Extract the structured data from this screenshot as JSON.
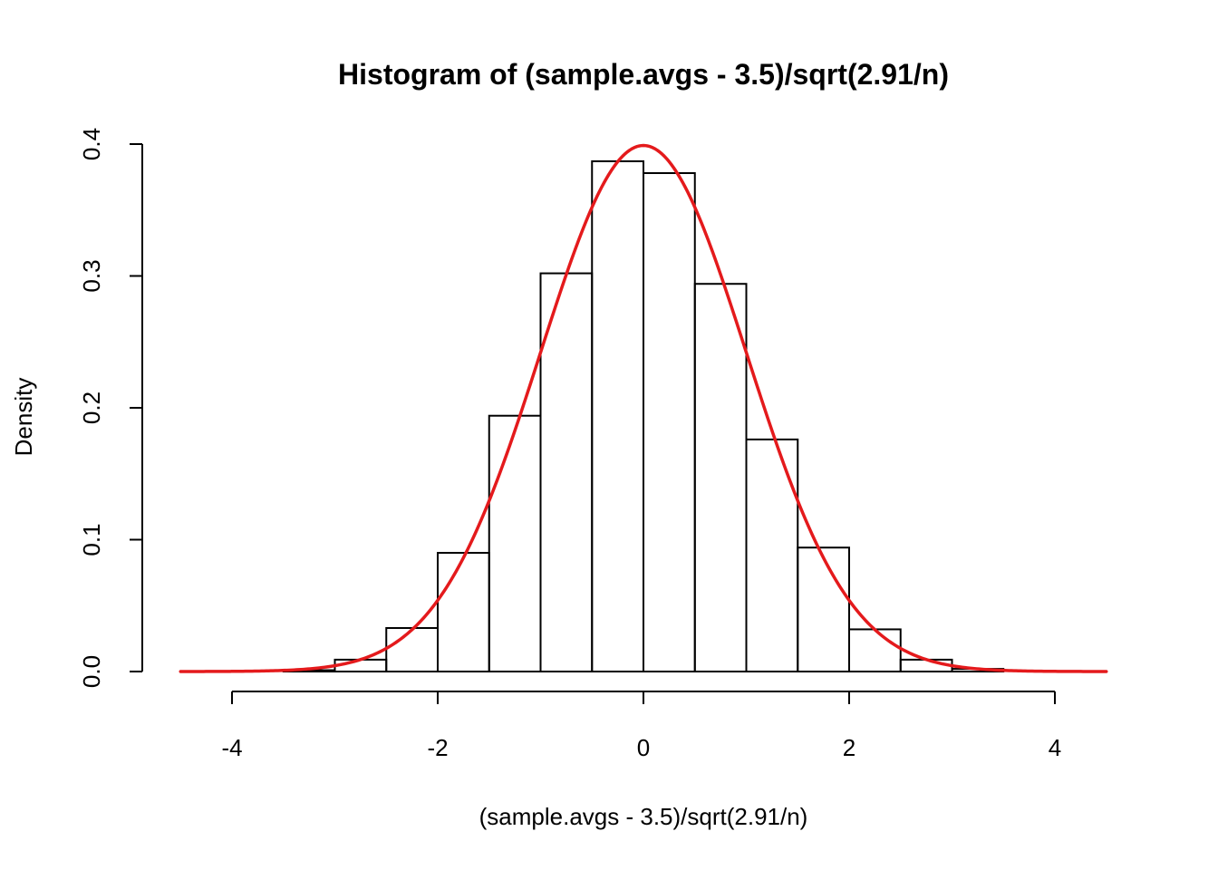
{
  "chart_data": {
    "type": "histogram",
    "title": "Histogram of (sample.avgs - 3.5)/sqrt(2.91/n)",
    "xlabel": "(sample.avgs - 3.5)/sqrt(2.91/n)",
    "ylabel": "Density",
    "xlim": [
      -4.5,
      4.5
    ],
    "ylim": [
      0,
      0.4
    ],
    "x_ticks": [
      -4,
      -2,
      0,
      2,
      4
    ],
    "x_tick_labels": [
      "-4",
      "-2",
      "0",
      "2",
      "4"
    ],
    "y_ticks": [
      0.0,
      0.1,
      0.2,
      0.3,
      0.4
    ],
    "y_tick_labels": [
      "0.0",
      "0.1",
      "0.2",
      "0.3",
      "0.4"
    ],
    "bins": [
      {
        "x0": -3.5,
        "x1": -3.0,
        "density": 0.001
      },
      {
        "x0": -3.0,
        "x1": -2.5,
        "density": 0.009
      },
      {
        "x0": -2.5,
        "x1": -2.0,
        "density": 0.033
      },
      {
        "x0": -2.0,
        "x1": -1.5,
        "density": 0.09
      },
      {
        "x0": -1.5,
        "x1": -1.0,
        "density": 0.194
      },
      {
        "x0": -1.0,
        "x1": -0.5,
        "density": 0.302
      },
      {
        "x0": -0.5,
        "x1": 0.0,
        "density": 0.387
      },
      {
        "x0": 0.0,
        "x1": 0.5,
        "density": 0.378
      },
      {
        "x0": 0.5,
        "x1": 1.0,
        "density": 0.294
      },
      {
        "x0": 1.0,
        "x1": 1.5,
        "density": 0.176
      },
      {
        "x0": 1.5,
        "x1": 2.0,
        "density": 0.094
      },
      {
        "x0": 2.0,
        "x1": 2.5,
        "density": 0.032
      },
      {
        "x0": 2.5,
        "x1": 3.0,
        "density": 0.009
      },
      {
        "x0": 3.0,
        "x1": 3.5,
        "density": 0.002
      }
    ],
    "curve": {
      "type": "normal-density",
      "mean": 0,
      "sd": 1,
      "x_range": [
        -4.5,
        4.5
      ],
      "color": "#e41a1c"
    },
    "bar_stroke_color": "#000000",
    "bar_fill_color": "none",
    "grid": false,
    "legend": "none"
  }
}
